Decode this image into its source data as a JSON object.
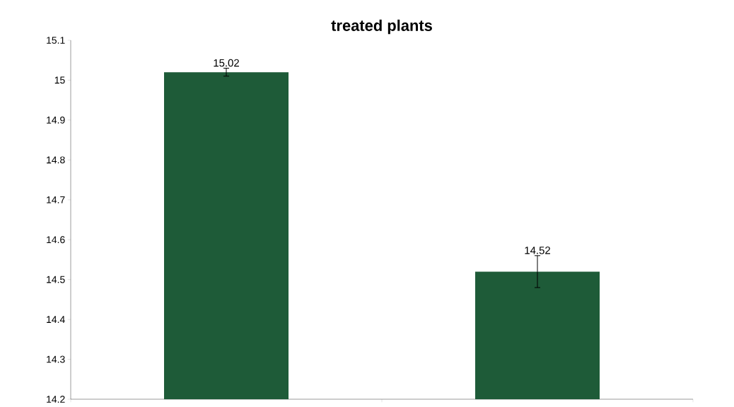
{
  "chart_data": {
    "type": "bar",
    "title": "treated plants",
    "categories": [
      null,
      null
    ],
    "values": [
      15.02,
      14.52
    ],
    "errors": [
      0.01,
      0.04
    ],
    "color": "#1e5b38",
    "data_labels": true,
    "ylim": [
      14.2,
      15.1
    ],
    "yticks": [
      14.2,
      14.3,
      14.4,
      14.5,
      14.6,
      14.7,
      14.8,
      14.9,
      15,
      15.1
    ]
  }
}
